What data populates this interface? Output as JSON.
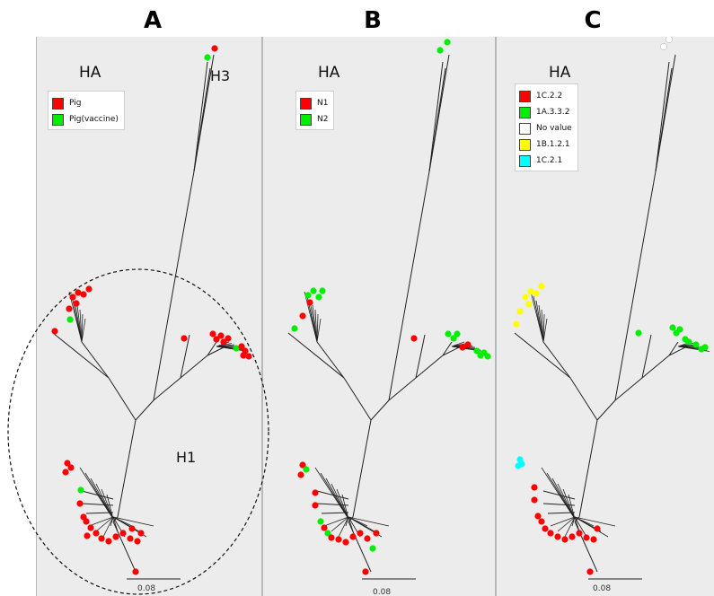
{
  "panels": [
    {
      "letter": "A",
      "title": "HA",
      "legend": [
        {
          "label": "Pig",
          "color": "#ff0000"
        },
        {
          "label": "Pig(vaccine)",
          "color": "#00ee00"
        }
      ],
      "labels": {
        "h3": "H3",
        "h1": "H1"
      },
      "scale": "0.08"
    },
    {
      "letter": "B",
      "title": "HA",
      "legend": [
        {
          "label": "N1",
          "color": "#ff0000"
        },
        {
          "label": "N2",
          "color": "#00ee00"
        }
      ],
      "scale": "0.08"
    },
    {
      "letter": "C",
      "title": "HA",
      "legend": [
        {
          "label": "1C.2.2",
          "color": "#ff0000"
        },
        {
          "label": "1A.3.3.2",
          "color": "#00ee00"
        },
        {
          "label": "No value",
          "color": "#ffffff"
        },
        {
          "label": "1B.1.2.1",
          "color": "#ffff00"
        },
        {
          "label": "1C.2.1",
          "color": "#00ffff"
        }
      ],
      "scale": "0.08"
    }
  ],
  "colors": {
    "red": "#ff0000",
    "green": "#00ee00",
    "white": "#ffffff",
    "yellow": "#ffff00",
    "cyan": "#00ffff"
  }
}
